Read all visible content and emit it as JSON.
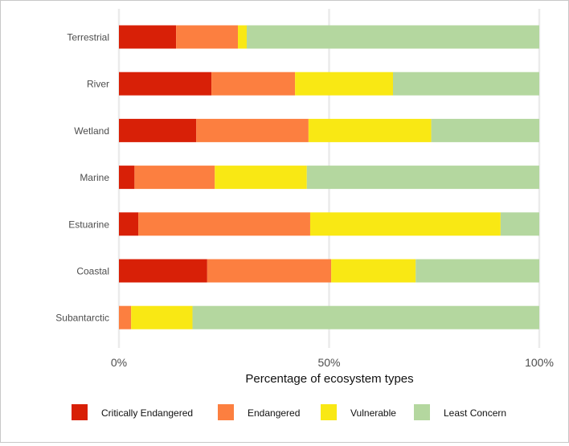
{
  "chart_data": {
    "type": "bar",
    "orientation": "horizontal",
    "stacked": true,
    "categories": [
      "Terrestrial",
      "River",
      "Wetland",
      "Marine",
      "Estuarine",
      "Coastal",
      "Subantarctic"
    ],
    "series": [
      {
        "name": "Critically Endangered",
        "color": "#d82007",
        "values": [
          13.6,
          22.0,
          18.4,
          3.7,
          4.6,
          21.0,
          0
        ]
      },
      {
        "name": "Endangered",
        "color": "#fc7f40",
        "values": [
          14.7,
          19.9,
          26.7,
          19.1,
          40.9,
          29.5,
          2.9
        ]
      },
      {
        "name": "Vulnerable",
        "color": "#f9e814",
        "values": [
          2.1,
          23.3,
          29.2,
          21.9,
          45.3,
          20.1,
          14.6
        ]
      },
      {
        "name": "Least Concern",
        "color": "#b4d79f",
        "values": [
          69.6,
          34.8,
          25.7,
          55.3,
          9.2,
          29.4,
          82.5
        ]
      }
    ],
    "xlabel": "Percentage of ecosystem types",
    "ylabel": "",
    "xlim": [
      0,
      100
    ],
    "xticks": [
      "0%",
      "50%",
      "100%"
    ],
    "xtick_values": [
      0,
      50,
      100
    ],
    "grid": true,
    "legend_position": "bottom"
  }
}
